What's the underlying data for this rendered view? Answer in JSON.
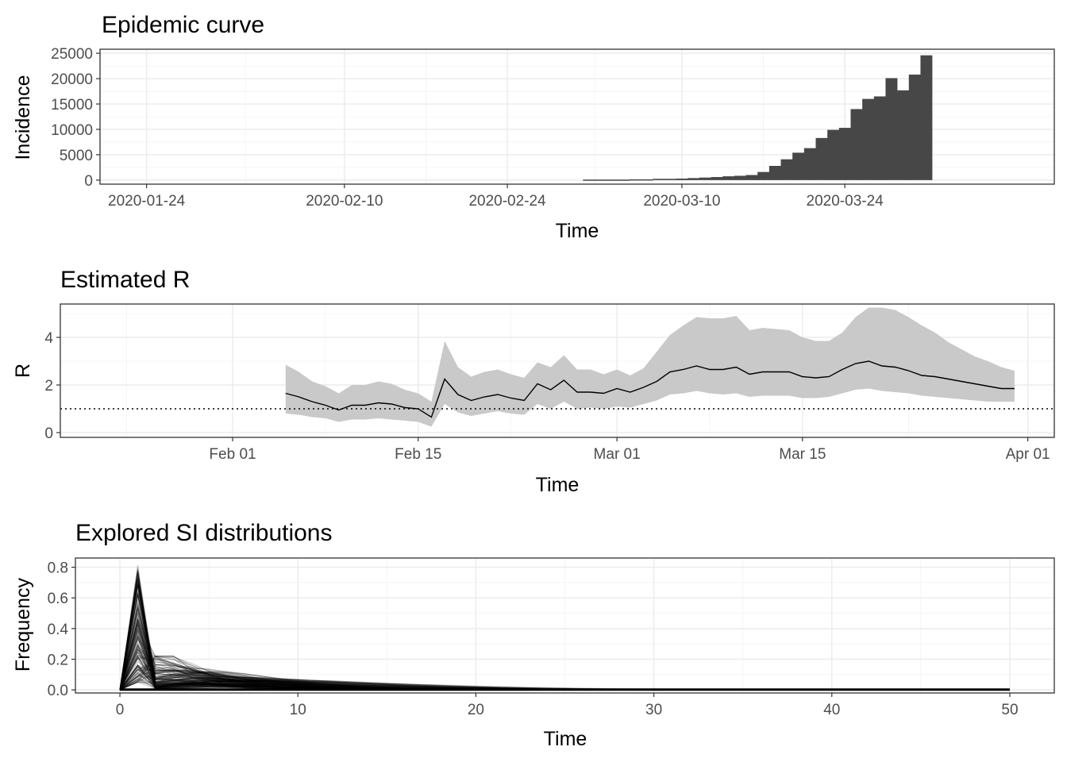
{
  "chart_data": [
    {
      "id": "epi",
      "type": "bar",
      "title": "Epidemic curve",
      "xlabel": "Time",
      "ylabel": "Incidence",
      "xlim": [
        "2020-01-20",
        "2020-04-11"
      ],
      "ylim": [
        -800,
        25800
      ],
      "x_ticks": [
        "2020-01-24",
        "2020-02-10",
        "2020-02-24",
        "2020-03-10",
        "2020-03-24"
      ],
      "y_ticks": [
        0,
        5000,
        10000,
        15000,
        20000,
        25000
      ],
      "bar_color": "#474747",
      "bars": [
        {
          "date": "2020-03-02",
          "value": 100
        },
        {
          "date": "2020-03-03",
          "value": 100
        },
        {
          "date": "2020-03-04",
          "value": 100
        },
        {
          "date": "2020-03-05",
          "value": 100
        },
        {
          "date": "2020-03-06",
          "value": 150
        },
        {
          "date": "2020-03-07",
          "value": 150
        },
        {
          "date": "2020-03-08",
          "value": 250
        },
        {
          "date": "2020-03-09",
          "value": 250
        },
        {
          "date": "2020-03-10",
          "value": 300
        },
        {
          "date": "2020-03-11",
          "value": 400
        },
        {
          "date": "2020-03-12",
          "value": 500
        },
        {
          "date": "2020-03-13",
          "value": 600
        },
        {
          "date": "2020-03-14",
          "value": 750
        },
        {
          "date": "2020-03-15",
          "value": 850
        },
        {
          "date": "2020-03-16",
          "value": 1000
        },
        {
          "date": "2020-03-17",
          "value": 1600
        },
        {
          "date": "2020-03-18",
          "value": 2800
        },
        {
          "date": "2020-03-19",
          "value": 4100
        },
        {
          "date": "2020-03-20",
          "value": 5400
        },
        {
          "date": "2020-03-21",
          "value": 6300
        },
        {
          "date": "2020-03-22",
          "value": 8300
        },
        {
          "date": "2020-03-23",
          "value": 9900
        },
        {
          "date": "2020-03-24",
          "value": 10300
        },
        {
          "date": "2020-03-25",
          "value": 14000
        },
        {
          "date": "2020-03-26",
          "value": 16000
        },
        {
          "date": "2020-03-27",
          "value": 16500
        },
        {
          "date": "2020-03-28",
          "value": 20100
        },
        {
          "date": "2020-03-29",
          "value": 17700
        },
        {
          "date": "2020-03-30",
          "value": 20800
        },
        {
          "date": "2020-03-31",
          "value": 24600
        }
      ]
    },
    {
      "id": "r",
      "type": "line",
      "title": "Estimated R",
      "xlabel": "Time",
      "ylabel": "R",
      "xlim": [
        "2020-01-19",
        "2020-04-03"
      ],
      "ylim": [
        -0.2,
        5.4
      ],
      "x_ticks": [
        {
          "date": "2020-02-01",
          "label": "Feb 01"
        },
        {
          "date": "2020-02-15",
          "label": "Feb 15"
        },
        {
          "date": "2020-03-01",
          "label": "Mar 01"
        },
        {
          "date": "2020-03-15",
          "label": "Mar 15"
        },
        {
          "date": "2020-04-01",
          "label": "Apr 01"
        }
      ],
      "y_ticks": [
        0,
        2,
        4
      ],
      "reference_line": 1,
      "ribbon_color": "#c9c9c9",
      "series": [
        {
          "type": "line",
          "x": [
            "2020-02-05",
            "2020-02-06",
            "2020-02-07",
            "2020-02-08",
            "2020-02-09",
            "2020-02-10",
            "2020-02-11",
            "2020-02-12",
            "2020-02-13",
            "2020-02-14",
            "2020-02-15",
            "2020-02-16",
            "2020-02-17",
            "2020-02-18",
            "2020-02-19",
            "2020-02-20",
            "2020-02-21",
            "2020-02-22",
            "2020-02-23",
            "2020-02-24",
            "2020-02-25",
            "2020-02-26",
            "2020-02-27",
            "2020-02-28",
            "2020-02-29",
            "2020-03-01",
            "2020-03-02",
            "2020-03-03",
            "2020-03-04",
            "2020-03-05",
            "2020-03-06",
            "2020-03-07",
            "2020-03-08",
            "2020-03-09",
            "2020-03-10",
            "2020-03-11",
            "2020-03-12",
            "2020-03-13",
            "2020-03-14",
            "2020-03-15",
            "2020-03-16",
            "2020-03-17",
            "2020-03-18",
            "2020-03-19",
            "2020-03-20",
            "2020-03-21",
            "2020-03-22",
            "2020-03-23",
            "2020-03-24",
            "2020-03-25",
            "2020-03-26",
            "2020-03-27",
            "2020-03-28",
            "2020-03-29",
            "2020-03-30",
            "2020-03-31"
          ],
          "mean": [
            1.65,
            1.5,
            1.3,
            1.15,
            0.95,
            1.15,
            1.15,
            1.25,
            1.2,
            1.05,
            1.0,
            0.65,
            2.25,
            1.6,
            1.35,
            1.5,
            1.6,
            1.45,
            1.35,
            2.05,
            1.8,
            2.2,
            1.7,
            1.7,
            1.65,
            1.85,
            1.7,
            1.9,
            2.15,
            2.55,
            2.65,
            2.8,
            2.65,
            2.65,
            2.75,
            2.45,
            2.55,
            2.55,
            2.55,
            2.35,
            2.3,
            2.35,
            2.65,
            2.9,
            3.0,
            2.8,
            2.75,
            2.6,
            2.4,
            2.35,
            2.25,
            2.15,
            2.05,
            1.95,
            1.85,
            1.85
          ],
          "lower": [
            0.8,
            0.75,
            0.65,
            0.6,
            0.45,
            0.55,
            0.55,
            0.6,
            0.55,
            0.5,
            0.45,
            0.25,
            1.2,
            0.85,
            0.7,
            0.8,
            0.9,
            0.8,
            0.75,
            1.2,
            1.0,
            1.3,
            1.0,
            1.05,
            1.0,
            1.1,
            1.05,
            1.2,
            1.35,
            1.6,
            1.65,
            1.75,
            1.65,
            1.6,
            1.65,
            1.5,
            1.55,
            1.55,
            1.55,
            1.45,
            1.45,
            1.5,
            1.65,
            1.8,
            1.85,
            1.75,
            1.7,
            1.65,
            1.55,
            1.5,
            1.45,
            1.4,
            1.35,
            1.3,
            1.3,
            1.3
          ],
          "upper": [
            2.85,
            2.55,
            2.15,
            1.95,
            1.65,
            2.0,
            2.0,
            2.15,
            2.05,
            1.8,
            1.65,
            1.3,
            3.85,
            2.75,
            2.35,
            2.55,
            2.65,
            2.45,
            2.3,
            2.95,
            2.75,
            3.25,
            2.65,
            2.65,
            2.45,
            2.65,
            2.4,
            2.7,
            3.4,
            4.1,
            4.5,
            4.85,
            4.8,
            4.8,
            4.9,
            4.3,
            4.4,
            4.35,
            4.3,
            4.0,
            3.85,
            3.85,
            4.2,
            4.85,
            5.25,
            5.25,
            5.15,
            4.85,
            4.5,
            4.2,
            3.8,
            3.5,
            3.2,
            3.0,
            2.75,
            2.6
          ]
        }
      ]
    },
    {
      "id": "si",
      "type": "line",
      "title": "Explored SI distributions",
      "xlabel": "Time",
      "ylabel": "Frequency",
      "xlim": [
        -2.5,
        52.5
      ],
      "ylim": [
        -0.02,
        0.86
      ],
      "x_ticks": [
        0,
        10,
        20,
        30,
        40,
        50
      ],
      "y_ticks": [
        0.0,
        0.2,
        0.4,
        0.6,
        0.8
      ],
      "y_tick_labels": [
        "0.0",
        "0.2",
        "0.4",
        "0.6",
        "0.8"
      ],
      "line_color": "#000000",
      "description_params": {
        "max_day": 50,
        "peak_range": [
          0.05,
          0.82
        ]
      }
    }
  ]
}
